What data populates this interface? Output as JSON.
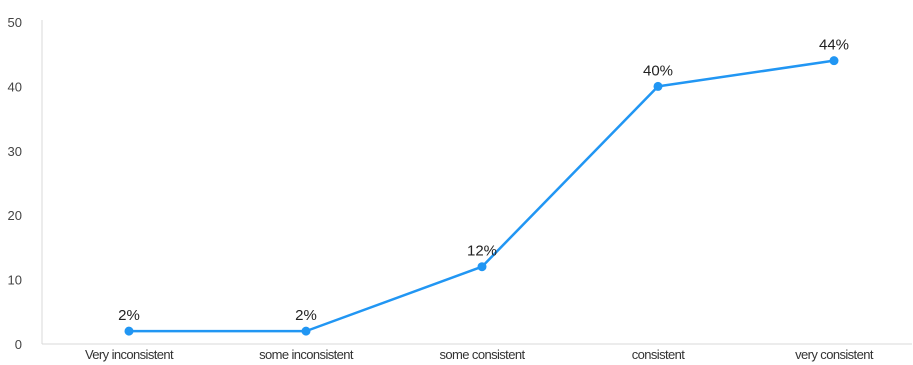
{
  "chart_data": {
    "type": "line",
    "title": "",
    "xlabel": "",
    "ylabel": "",
    "categories": [
      "Very inconsistent",
      "some inconsistent",
      "some consistent",
      "consistent",
      "very consistent"
    ],
    "series": [
      {
        "values": [
          2,
          2,
          12,
          40,
          44
        ],
        "labels": [
          "2%",
          "2%",
          "12%",
          "40%",
          "44%"
        ],
        "color": "#2196F3"
      }
    ],
    "ylim": [
      0,
      50
    ],
    "yticks": [
      0,
      10,
      20,
      30,
      40,
      50
    ],
    "grid": false,
    "legend": "none",
    "axis_color": "#d9d9d9"
  }
}
